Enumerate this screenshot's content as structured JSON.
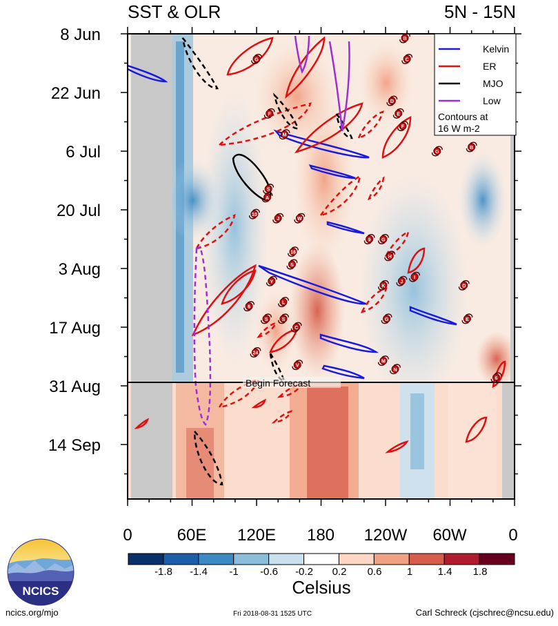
{
  "chart_data": {
    "type": "heatmap",
    "title_left": "SST & OLR",
    "title_right": "5N - 15N",
    "x_ticks": [
      "0",
      "60E",
      "120E",
      "180",
      "120W",
      "60W",
      "0"
    ],
    "x_range_deg_east": [
      0,
      360
    ],
    "y_ticks": [
      "8 Jun",
      "22 Jun",
      "6 Jul",
      "20 Jul",
      "3 Aug",
      "17 Aug",
      "31 Aug",
      "14 Sep"
    ],
    "y_range_days": [
      0,
      111
    ],
    "forecast_label": "Begin Forecast",
    "forecast_start_day": 84,
    "colorbar": {
      "label": "Celsius",
      "tick_labels": [
        "-1.8",
        "-1.4",
        "-1",
        "-0.6",
        "-0.2",
        "0.2",
        "0.6",
        "1",
        "1.4",
        "1.8"
      ],
      "colors": [
        "#08306b",
        "#1c5fa8",
        "#3b8ac4",
        "#8cbedc",
        "#c9e1ef",
        "#ffffff",
        "#fbd7c4",
        "#f0a184",
        "#d65d4b",
        "#b01c2e",
        "#67001f"
      ]
    },
    "legend": [
      {
        "label": "Kelvin",
        "color": "#1a1adb"
      },
      {
        "label": "ER",
        "color": "#e01010"
      },
      {
        "label": "MJO",
        "color": "#000000"
      },
      {
        "label": "Low",
        "color": "#9d2fd8"
      }
    ],
    "contour_note_line1": "Contours at",
    "contour_note_line2": "16 W m-2",
    "storm_markers": [
      {
        "label": "G",
        "lon": 120,
        "day": 6
      },
      {
        "label": "B",
        "lon": 258,
        "day": 1
      },
      {
        "label": "C",
        "lon": 260,
        "day": 6
      },
      {
        "label": "D",
        "lon": 246,
        "day": 16
      },
      {
        "label": "E",
        "lon": 252,
        "day": 19
      },
      {
        "label": "F",
        "lon": 256,
        "day": 22
      },
      {
        "label": "F",
        "lon": 132,
        "day": 19
      },
      {
        "label": "M",
        "lon": 146,
        "day": 24
      },
      {
        "label": "G",
        "lon": 288,
        "day": 28
      },
      {
        "label": "B",
        "lon": 320,
        "day": 27
      },
      {
        "label": "S",
        "lon": 131,
        "day": 37
      },
      {
        "label": "A",
        "lon": 130,
        "day": 39
      },
      {
        "label": "10",
        "lon": 118,
        "day": 43
      },
      {
        "label": "J",
        "lon": 140,
        "day": 44
      },
      {
        "label": "W",
        "lon": 160,
        "day": 44
      },
      {
        "label": "9",
        "lon": 225,
        "day": 49
      },
      {
        "label": "G",
        "lon": 238,
        "day": 49
      },
      {
        "label": "H",
        "lon": 244,
        "day": 53
      },
      {
        "label": "16",
        "lon": 154,
        "day": 52
      },
      {
        "label": "S",
        "lon": 153,
        "day": 55
      },
      {
        "label": "Y",
        "lon": 134,
        "day": 59
      },
      {
        "label": "K",
        "lon": 238,
        "day": 60
      },
      {
        "label": "J",
        "lon": 255,
        "day": 59
      },
      {
        "label": "I",
        "lon": 267,
        "day": 58
      },
      {
        "label": "D",
        "lon": 313,
        "day": 60
      },
      {
        "label": "L",
        "lon": 145,
        "day": 64
      },
      {
        "label": "6",
        "lon": 113,
        "day": 65
      },
      {
        "label": "S",
        "lon": 129,
        "day": 68
      },
      {
        "label": "S",
        "lon": 145,
        "day": 68
      },
      {
        "label": "C",
        "lon": 157,
        "day": 70
      },
      {
        "label": "G",
        "lon": 241,
        "day": 68
      },
      {
        "label": "E",
        "lon": 316,
        "day": 68
      },
      {
        "label": "24",
        "lon": 119,
        "day": 76
      },
      {
        "label": "V",
        "lon": 158,
        "day": 79
      },
      {
        "label": "M",
        "lon": 238,
        "day": 78
      },
      {
        "label": "N",
        "lon": 249,
        "day": 80
      },
      {
        "label": "6",
        "lon": 343,
        "day": 82
      }
    ]
  }
}
